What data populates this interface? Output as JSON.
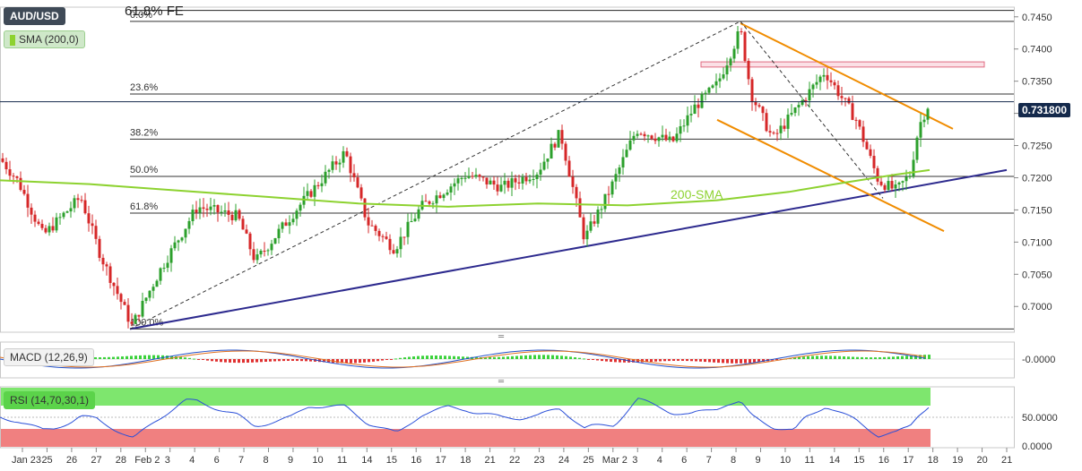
{
  "header": {
    "symbol": "AUD/USD",
    "sma_label": "SMA (200,0)",
    "fe_label": "61.8% FE"
  },
  "price_tag": "0.731800",
  "macd_label": "MACD (12,26,9)",
  "rsi_label": "RSI (14,70,30,1)",
  "chart_data": {
    "type": "candlestick",
    "title": "AUD/USD",
    "x_tick_labels": [
      "Jan 23",
      "25",
      "26",
      "27",
      "28",
      "Feb 2",
      "3",
      "4",
      "6",
      "7",
      "8",
      "9",
      "10",
      "11",
      "14",
      "15",
      "16",
      "17",
      "18",
      "21",
      "22",
      "23",
      "24",
      "25",
      "Mar 2",
      "3",
      "4",
      "6",
      "7",
      "8",
      "9",
      "10",
      "11",
      "14",
      "15",
      "16",
      "17",
      "18",
      "19",
      "20",
      "21"
    ],
    "price_axis": {
      "ticks": [
        "0.7450",
        "0.7400",
        "0.7350",
        "0.7300",
        "0.7250",
        "0.7200",
        "0.7150",
        "0.7100",
        "0.7050",
        "0.7000"
      ],
      "ylim": [
        0.696,
        0.7465
      ]
    },
    "current_price": 0.7318,
    "fibonacci_levels": [
      {
        "label": "0.0%",
        "value": 0.7443
      },
      {
        "label": "23.6%",
        "value": 0.733
      },
      {
        "label": "38.2%",
        "value": 0.726
      },
      {
        "label": "50.0%",
        "value": 0.7202
      },
      {
        "label": "61.8%",
        "value": 0.7145
      },
      {
        "label": "100.0%",
        "value": 0.6965
      }
    ],
    "fe_level": {
      "label": "61.8% FE",
      "value": 0.746
    },
    "annotations": [
      "200-SMA"
    ],
    "colors": {
      "bull_candle": "#2ca02c",
      "bear_candle": "#d62728",
      "sma": "#8dd230",
      "trendline": "#2d2a8e",
      "channel": "#f08c00",
      "resistance_zone": "#e06b82",
      "rsi_overbought_fill": "#7ee66e",
      "rsi_oversold_fill": "#f08080",
      "price_tag": "#14294b"
    },
    "macd": {
      "params": "12,26,9",
      "axis_ticks": [
        "-0.0000"
      ]
    },
    "rsi": {
      "params": "14,70,30,1",
      "axis_ticks": [
        "50.0000",
        "0.0000"
      ]
    }
  }
}
